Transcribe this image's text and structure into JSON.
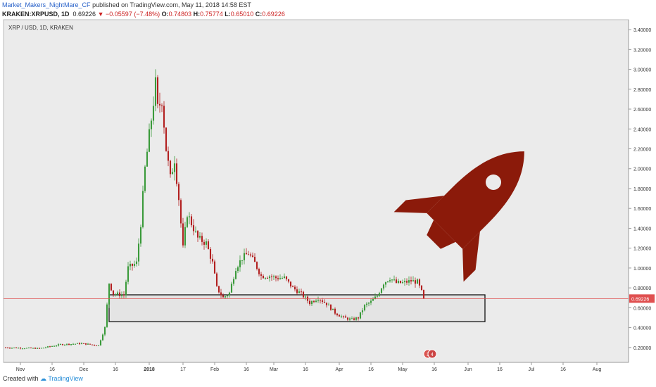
{
  "header": {
    "author": "Market_Makers_NightMare_CF",
    "published": "published on TradingView.com, May 11, 2018 14:58 EST"
  },
  "ohlc": {
    "symbol": "KRAKEN:XRPUSD, 1D",
    "last": "0.69226",
    "arrow": "▼",
    "change": "−0.05597 (−7.48%)",
    "o_label": "O:",
    "o": "0.74803",
    "h_label": "H:",
    "h": "0.75774",
    "l_label": "L:",
    "l": "0.65010",
    "c_label": "C:",
    "c": "0.69226"
  },
  "legend": "XRP / USD, 1D, KRAKEN",
  "footer": {
    "created_with": "Created with",
    "brand": "TradingView"
  },
  "colors": {
    "up": "#3a9a3a",
    "down": "#b22020",
    "price_line": "#e05050",
    "rocket": "#8b1a0a",
    "plot_bg": "#ebebeb"
  },
  "chart_data": {
    "type": "candlestick",
    "y_ticks": [
      "0.20000",
      "0.40000",
      "0.60000",
      "0.80000",
      "1.00000",
      "1.20000",
      "1.40000",
      "1.60000",
      "1.80000",
      "2.00000",
      "2.20000",
      "2.40000",
      "2.60000",
      "2.80000",
      "3.00000",
      "3.20000",
      "3.40000"
    ],
    "ylim": [
      0.05,
      3.5
    ],
    "x_ticks": [
      "Nov",
      "16",
      "Dec",
      "16",
      "2018",
      "17",
      "Feb",
      "16",
      "Mar",
      "16",
      "Apr",
      "16",
      "May",
      "16",
      "Jun",
      "16",
      "Jul",
      "16",
      "Aug"
    ],
    "xlim": [
      "2017-10-24",
      "2018-08-16"
    ],
    "last_price": 0.69226,
    "last_price_label": "0.69226",
    "support_zone": {
      "from": "2017-12-13",
      "to": "2018-06-09",
      "low": 0.46,
      "high": 0.73
    },
    "markers": [
      {
        "date": "2018-05-13",
        "label": "3"
      },
      {
        "date": "2018-05-15",
        "label": "4"
      }
    ],
    "path": [
      [
        "2017-10-24",
        0.2
      ],
      [
        "2017-11-10",
        0.19
      ],
      [
        "2017-11-20",
        0.23
      ],
      [
        "2017-11-30",
        0.24
      ],
      [
        "2017-12-08",
        0.22
      ],
      [
        "2017-12-11",
        0.4
      ],
      [
        "2017-12-13",
        0.85
      ],
      [
        "2017-12-15",
        0.74
      ],
      [
        "2017-12-20",
        0.73
      ],
      [
        "2017-12-22",
        1.0
      ],
      [
        "2017-12-26",
        1.05
      ],
      [
        "2017-12-28",
        1.45
      ],
      [
        "2017-12-30",
        2.0
      ],
      [
        "2018-01-02",
        2.5
      ],
      [
        "2018-01-04",
        2.85
      ],
      [
        "2018-01-05",
        2.6
      ],
      [
        "2018-01-07",
        2.7
      ],
      [
        "2018-01-09",
        2.2
      ],
      [
        "2018-01-11",
        1.9
      ],
      [
        "2018-01-13",
        2.1
      ],
      [
        "2018-01-15",
        1.7
      ],
      [
        "2018-01-17",
        1.2
      ],
      [
        "2018-01-19",
        1.55
      ],
      [
        "2018-01-21",
        1.45
      ],
      [
        "2018-01-24",
        1.3
      ],
      [
        "2018-01-28",
        1.25
      ],
      [
        "2018-01-31",
        1.05
      ],
      [
        "2018-02-02",
        0.8
      ],
      [
        "2018-02-05",
        0.7
      ],
      [
        "2018-02-08",
        0.75
      ],
      [
        "2018-02-11",
        1.0
      ],
      [
        "2018-02-14",
        1.1
      ],
      [
        "2018-02-17",
        1.15
      ],
      [
        "2018-02-20",
        1.05
      ],
      [
        "2018-02-23",
        0.92
      ],
      [
        "2018-02-27",
        0.92
      ],
      [
        "2018-03-02",
        0.9
      ],
      [
        "2018-03-06",
        0.9
      ],
      [
        "2018-03-10",
        0.8
      ],
      [
        "2018-03-14",
        0.74
      ],
      [
        "2018-03-18",
        0.65
      ],
      [
        "2018-03-22",
        0.7
      ],
      [
        "2018-03-26",
        0.64
      ],
      [
        "2018-03-30",
        0.55
      ],
      [
        "2018-04-03",
        0.5
      ],
      [
        "2018-04-07",
        0.48
      ],
      [
        "2018-04-10",
        0.5
      ],
      [
        "2018-04-13",
        0.62
      ],
      [
        "2018-04-16",
        0.66
      ],
      [
        "2018-04-19",
        0.72
      ],
      [
        "2018-04-22",
        0.85
      ],
      [
        "2018-04-25",
        0.9
      ],
      [
        "2018-04-28",
        0.85
      ],
      [
        "2018-05-01",
        0.85
      ],
      [
        "2018-05-05",
        0.87
      ],
      [
        "2018-05-08",
        0.86
      ],
      [
        "2018-05-10",
        0.76
      ],
      [
        "2018-05-11",
        0.69
      ]
    ]
  }
}
